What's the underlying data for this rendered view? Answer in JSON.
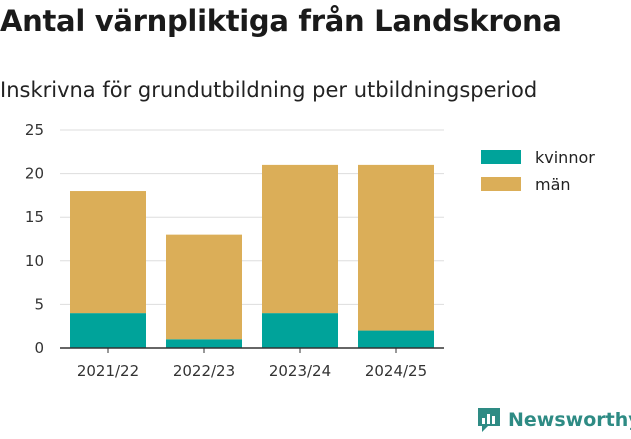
{
  "title": "Antal värnpliktiga från Landskrona",
  "subtitle": "Inskrivna för grundutbildning per utbildningsperiod",
  "brand": {
    "name": "Newsworthy",
    "icon": "newsworthy-logo-icon",
    "color": "#2e8b84"
  },
  "colors": {
    "kvinnor": "#00a39a",
    "man": "#dbae58",
    "grid": "#dddddd",
    "axis": "#333333"
  },
  "chart_data": {
    "type": "bar",
    "stacked": true,
    "categories": [
      "2021/22",
      "2022/23",
      "2023/24",
      "2024/25"
    ],
    "series": [
      {
        "name": "kvinnor",
        "values": [
          4,
          1,
          4,
          2
        ]
      },
      {
        "name": "män",
        "values": [
          14,
          12,
          17,
          19
        ]
      }
    ],
    "ylim": [
      0,
      25
    ],
    "yticks": [
      0,
      5,
      10,
      15,
      20,
      25
    ],
    "grid": true,
    "legend": "right"
  }
}
